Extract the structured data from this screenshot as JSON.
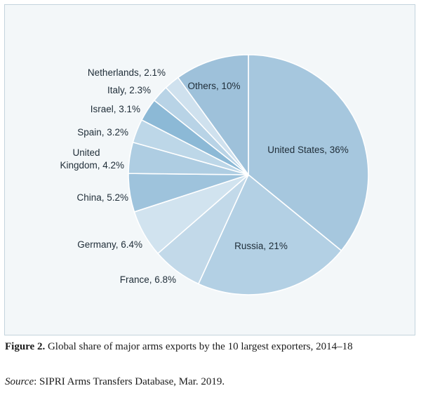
{
  "chart_data": {
    "type": "pie",
    "slices": [
      {
        "label": "United States, 36%",
        "value": 36,
        "color": "#a6c7de"
      },
      {
        "label": "Russia, 21%",
        "value": 21,
        "color": "#b3d0e4"
      },
      {
        "label": "France, 6.8%",
        "value": 6.8,
        "color": "#c2d9e9"
      },
      {
        "label": "Germany, 6.4%",
        "value": 6.4,
        "color": "#d1e3ef"
      },
      {
        "label": "China, 5.2%",
        "value": 5.2,
        "color": "#9ec3dc"
      },
      {
        "label": "United Kingdom, 4.2%",
        "value": 4.2,
        "color": "#aecde2"
      },
      {
        "label": "Spain, 3.2%",
        "value": 3.2,
        "color": "#bdd7e8"
      },
      {
        "label": "Israel, 3.1%",
        "value": 3.1,
        "color": "#8cb9d6"
      },
      {
        "label": "Italy, 2.3%",
        "value": 2.3,
        "color": "#b8d3e6"
      },
      {
        "label": "Netherlands, 2.1%",
        "value": 2.1,
        "color": "#cfe1ee"
      },
      {
        "label": "Others, 10%",
        "value": 10,
        "color": "#9ec1da"
      }
    ],
    "start_angle": "12 o'clock",
    "direction": "clockwise",
    "edge_color": "#ffffff"
  },
  "caption": {
    "figure_label": "Figure 2.",
    "text": " Global share of major arms exports by the 10 largest exporters, 2014–18"
  },
  "source": {
    "label": "Source",
    "text": ": SIPRI Arms Transfers Database, Mar. 2019."
  }
}
